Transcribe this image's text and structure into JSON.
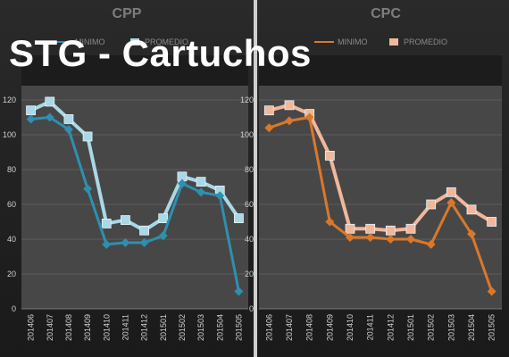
{
  "overlay_title": "STG - Cartuchos",
  "colors": {
    "cpp_minimo": "#2f8fae",
    "cpp_promedio": "#a9d8e6",
    "cpc_minimo": "#d9782b",
    "cpc_promedio": "#f1b79b"
  },
  "chart_data": [
    {
      "type": "line",
      "title": "CPP",
      "categories": [
        "201406",
        "201407",
        "201408",
        "201409",
        "201410",
        "201411",
        "201412",
        "201501",
        "201502",
        "201503",
        "201504",
        "201505"
      ],
      "series": [
        {
          "name": "MINIMO",
          "values": [
            109,
            110,
            103,
            69,
            37,
            38,
            38,
            42,
            72,
            67,
            65,
            10
          ]
        },
        {
          "name": "PROMEDIO",
          "values": [
            114,
            119,
            109,
            99,
            49,
            51,
            45,
            52,
            76,
            73,
            68,
            52
          ]
        }
      ],
      "ylim": [
        0,
        120
      ],
      "yticks": [
        "0",
        "20",
        "40",
        "60",
        "80",
        "100",
        "120"
      ],
      "legend": "top",
      "grid": true
    },
    {
      "type": "line",
      "title": "CPC",
      "categories": [
        "201406",
        "201407",
        "201408",
        "201409",
        "201410",
        "201411",
        "201412",
        "201501",
        "201502",
        "201503",
        "201504",
        "201505"
      ],
      "series": [
        {
          "name": "MINIMO",
          "values": [
            104,
            108,
            110,
            50,
            41,
            41,
            40,
            40,
            37,
            61,
            43,
            10
          ]
        },
        {
          "name": "PROMEDIO",
          "values": [
            114,
            117,
            112,
            88,
            46,
            46,
            45,
            46,
            60,
            67,
            57,
            50
          ]
        }
      ],
      "ylim": [
        0,
        120
      ],
      "yticks": [
        "0",
        "20",
        "40",
        "60",
        "80",
        "100",
        "120"
      ],
      "legend": "top",
      "grid": true
    }
  ]
}
